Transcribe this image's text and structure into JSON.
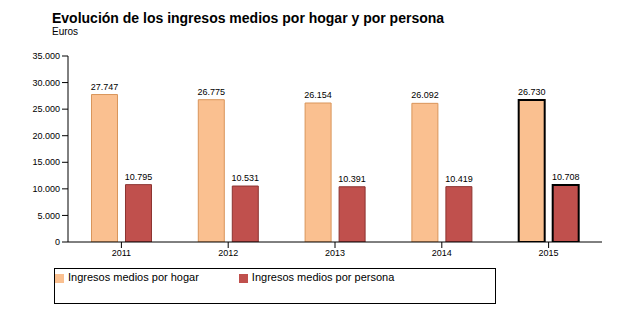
{
  "chart_data": {
    "type": "bar",
    "title": "Evolución de los ingresos medios por hogar y por persona",
    "subtitle": "Euros",
    "categories": [
      "2011",
      "2012",
      "2013",
      "2014",
      "2015"
    ],
    "series": [
      {
        "name": "Ingresos medios por hogar",
        "color": "#fac090",
        "values": [
          27747,
          26775,
          26154,
          26092,
          26730
        ],
        "value_labels": [
          "27.747",
          "26.775",
          "26.154",
          "26.092",
          "26.730"
        ]
      },
      {
        "name": "Ingresos medios por persona",
        "color": "#c0504d",
        "values": [
          10795,
          10531,
          10391,
          10419,
          10708
        ],
        "value_labels": [
          "10.795",
          "10.531",
          "10.391",
          "10.419",
          "10.708"
        ]
      }
    ],
    "ylim": [
      0,
      35000
    ],
    "yticks": [
      0,
      {
        "value": 5000,
        "label": "5.000"
      },
      {
        "value": 10000,
        "label": "10.000"
      },
      {
        "value": 15000,
        "label": "15.000"
      },
      {
        "value": 20000,
        "label": "20.000"
      },
      {
        "value": 25000,
        "label": "25.000"
      },
      {
        "value": 30000,
        "label": "30.000"
      },
      {
        "value": 35000,
        "label": "35.000"
      }
    ],
    "grid": false,
    "legend": "bottom",
    "data_labels": true
  }
}
